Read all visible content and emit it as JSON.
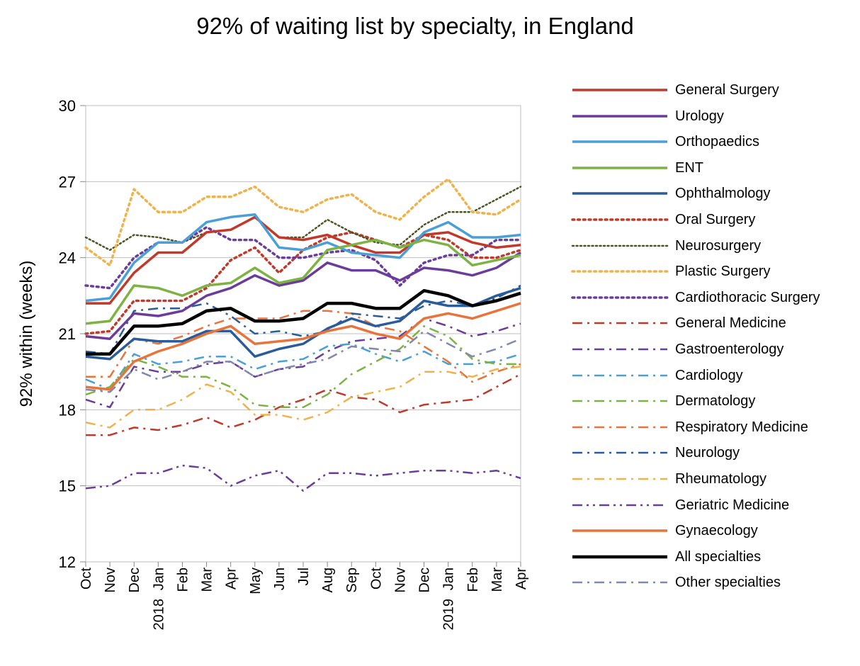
{
  "chart_data": {
    "type": "line",
    "title": "92% of waiting list by specialty, in England",
    "xlabel": "",
    "ylabel": "92% within  (weeks)",
    "ylim": [
      12,
      30
    ],
    "yticks": [
      12,
      15,
      18,
      21,
      24,
      27,
      30
    ],
    "categories": [
      "Oct",
      "Nov",
      "Dec",
      "Jan",
      "Feb",
      "Mar",
      "Apr",
      "May",
      "Jun",
      "Jul",
      "Aug",
      "Sep",
      "Oct",
      "Nov",
      "Dec",
      "Jan",
      "Feb",
      "Mar",
      "Apr"
    ],
    "year_labels": [
      {
        "index": 3,
        "label": "2018"
      },
      {
        "index": 15,
        "label": "2019"
      }
    ],
    "grid": "horizontal",
    "legend_position": "right",
    "series": [
      {
        "name": "General Surgery",
        "color": "#c0392b",
        "style": "solid",
        "width": 3.5,
        "values": [
          22.2,
          22.2,
          23.4,
          24.2,
          24.2,
          25.0,
          25.1,
          25.6,
          24.8,
          24.7,
          24.9,
          24.5,
          24.2,
          24.2,
          24.9,
          25.0,
          24.6,
          24.4,
          24.5
        ]
      },
      {
        "name": "Urology",
        "color": "#6a3d9a",
        "style": "solid",
        "width": 3.5,
        "values": [
          20.9,
          20.8,
          21.8,
          21.7,
          21.9,
          22.5,
          22.8,
          23.3,
          22.9,
          23.1,
          23.8,
          23.5,
          23.5,
          23.1,
          23.6,
          23.5,
          23.3,
          23.6,
          24.2
        ]
      },
      {
        "name": "Orthopaedics",
        "color": "#4a9fd9",
        "style": "solid",
        "width": 3.5,
        "values": [
          22.3,
          22.4,
          23.8,
          24.6,
          24.6,
          25.4,
          25.6,
          25.7,
          24.4,
          24.3,
          24.6,
          24.2,
          24.1,
          24.0,
          25.0,
          25.4,
          24.8,
          24.8,
          24.9
        ]
      },
      {
        "name": "ENT",
        "color": "#7cb342",
        "style": "solid",
        "width": 3.5,
        "values": [
          21.4,
          21.5,
          22.9,
          22.8,
          22.5,
          22.9,
          23.0,
          23.6,
          23.0,
          23.2,
          24.3,
          24.5,
          24.7,
          24.4,
          24.7,
          24.5,
          23.7,
          23.9,
          24.1
        ]
      },
      {
        "name": "Ophthalmology",
        "color": "#2a5c9a",
        "style": "solid",
        "width": 3.5,
        "values": [
          20.1,
          20.0,
          20.8,
          20.7,
          20.7,
          21.1,
          21.1,
          20.1,
          20.4,
          20.6,
          21.2,
          21.6,
          21.3,
          21.5,
          22.3,
          22.1,
          22.1,
          22.5,
          22.8
        ]
      },
      {
        "name": "Oral Surgery",
        "color": "#c0392b",
        "style": "dot",
        "width": 3.5,
        "values": [
          21.0,
          21.1,
          22.3,
          22.3,
          22.3,
          22.8,
          23.9,
          24.4,
          23.4,
          24.3,
          24.8,
          25.0,
          24.7,
          24.4,
          24.9,
          24.7,
          24.0,
          24.0,
          24.3
        ]
      },
      {
        "name": "Neurosurgery",
        "color": "#4b5320",
        "style": "dot",
        "width": 2.5,
        "values": [
          24.8,
          24.3,
          24.9,
          24.8,
          24.6,
          25.0,
          25.1,
          25.6,
          24.8,
          24.8,
          25.5,
          25.0,
          24.6,
          24.5,
          25.3,
          25.8,
          25.8,
          26.3,
          26.8
        ]
      },
      {
        "name": "Plastic Surgery",
        "color": "#f0b24a",
        "style": "dot",
        "width": 3.5,
        "values": [
          24.4,
          23.7,
          26.7,
          25.8,
          25.8,
          26.4,
          26.4,
          26.8,
          26.0,
          25.8,
          26.3,
          26.5,
          25.8,
          25.5,
          26.4,
          27.1,
          25.8,
          25.7,
          26.3
        ]
      },
      {
        "name": "Cardiothoracic Surgery",
        "color": "#6a3d9a",
        "style": "dot",
        "width": 3.5,
        "values": [
          22.9,
          22.8,
          24.0,
          24.6,
          24.6,
          25.2,
          24.7,
          24.7,
          24.0,
          24.0,
          24.2,
          24.3,
          23.9,
          22.9,
          23.8,
          24.1,
          24.1,
          24.7,
          24.7
        ]
      },
      {
        "name": "General Medicine",
        "color": "#c0392b",
        "style": "dashdot",
        "width": 2.5,
        "values": [
          17.0,
          17.0,
          17.3,
          17.2,
          17.4,
          17.7,
          17.3,
          17.6,
          18.1,
          18.4,
          18.8,
          18.5,
          18.4,
          17.9,
          18.2,
          18.3,
          18.4,
          18.9,
          19.4
        ]
      },
      {
        "name": "Gastroenterology",
        "color": "#6a3d9a",
        "style": "dashdot",
        "width": 2.5,
        "values": [
          18.4,
          18.1,
          19.7,
          19.5,
          19.5,
          19.8,
          19.9,
          19.3,
          19.6,
          19.7,
          20.3,
          20.7,
          20.8,
          20.9,
          21.6,
          21.3,
          20.9,
          21.1,
          21.4
        ]
      },
      {
        "name": "Cardiology",
        "color": "#4a9fd9",
        "style": "dashdot",
        "width": 2.5,
        "values": [
          19.2,
          18.8,
          20.2,
          19.8,
          19.9,
          20.1,
          20.1,
          19.6,
          19.9,
          20.0,
          20.5,
          20.6,
          20.2,
          19.9,
          20.3,
          19.8,
          19.8,
          19.9,
          20.2
        ]
      },
      {
        "name": "Dermatology",
        "color": "#7cb342",
        "style": "dashdot",
        "width": 2.5,
        "values": [
          18.6,
          18.9,
          20.0,
          19.7,
          19.3,
          19.3,
          18.9,
          18.2,
          18.1,
          18.1,
          18.6,
          19.4,
          19.9,
          20.4,
          21.3,
          20.9,
          20.0,
          19.8,
          19.8
        ]
      },
      {
        "name": "Respiratory Medicine",
        "color": "#e8743b",
        "style": "dashdot",
        "width": 2.5,
        "values": [
          19.3,
          19.3,
          20.8,
          20.6,
          20.9,
          21.3,
          21.6,
          21.6,
          21.6,
          21.9,
          21.9,
          21.8,
          21.3,
          21.1,
          20.5,
          19.9,
          19.1,
          19.5,
          19.8
        ]
      },
      {
        "name": "Neurology",
        "color": "#2a5c9a",
        "style": "dashdot",
        "width": 2.5,
        "values": [
          20.3,
          20.2,
          21.9,
          22.0,
          22.0,
          22.2,
          21.7,
          21.0,
          21.1,
          20.9,
          21.1,
          21.8,
          21.7,
          21.6,
          22.1,
          22.3,
          22.1,
          22.4,
          22.9
        ]
      },
      {
        "name": "Rheumatology",
        "color": "#f0b24a",
        "style": "dashdot",
        "width": 2.5,
        "values": [
          17.5,
          17.3,
          18.0,
          18.0,
          18.4,
          19.0,
          18.7,
          17.8,
          17.8,
          17.6,
          17.9,
          18.5,
          18.7,
          18.9,
          19.5,
          19.5,
          19.3,
          19.6,
          19.7
        ]
      },
      {
        "name": "Geriatric Medicine",
        "color": "#6a3d9a",
        "style": "dashdotdot",
        "width": 2.5,
        "values": [
          14.9,
          15.0,
          15.5,
          15.5,
          15.8,
          15.7,
          15.0,
          15.4,
          15.6,
          14.8,
          15.5,
          15.5,
          15.4,
          15.5,
          15.6,
          15.6,
          15.5,
          15.6,
          15.3
        ]
      },
      {
        "name": "Gynaecology",
        "color": "#e8743b",
        "style": "solid",
        "width": 3.5,
        "values": [
          18.9,
          18.8,
          19.9,
          20.3,
          20.6,
          21.0,
          21.3,
          20.6,
          20.7,
          20.8,
          21.1,
          21.3,
          21.0,
          20.8,
          21.6,
          21.8,
          21.6,
          21.9,
          22.2
        ]
      },
      {
        "name": "All specialties",
        "color": "#000000",
        "style": "solid",
        "width": 4.5,
        "values": [
          20.2,
          20.2,
          21.3,
          21.3,
          21.4,
          21.9,
          22.0,
          21.5,
          21.5,
          21.6,
          22.2,
          22.2,
          22.0,
          22.0,
          22.7,
          22.5,
          22.1,
          22.3,
          22.6
        ]
      },
      {
        "name": "Other specialties",
        "color": "#8088b0",
        "style": "dashdot",
        "width": 2.5,
        "values": [
          18.8,
          18.7,
          19.6,
          19.2,
          19.5,
          19.9,
          19.9,
          19.3,
          19.6,
          19.8,
          20.0,
          20.5,
          20.4,
          20.3,
          21.1,
          20.6,
          20.1,
          20.4,
          20.8
        ]
      }
    ]
  }
}
